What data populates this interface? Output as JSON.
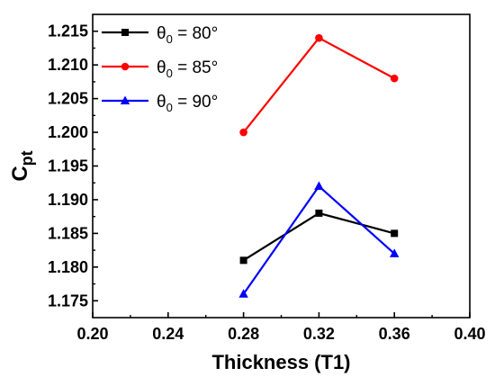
{
  "chart_data": {
    "type": "line",
    "xlabel": "Thickness (T1)",
    "ylabel": {
      "main": "C",
      "sub": "pt"
    },
    "xlim": [
      0.2,
      0.4
    ],
    "ylim": [
      1.1725,
      1.2175
    ],
    "x_ticks": [
      "0.20",
      "0.24",
      "0.28",
      "0.32",
      "0.36",
      "0.40"
    ],
    "y_ticks": [
      "1.175",
      "1.180",
      "1.185",
      "1.190",
      "1.195",
      "1.200",
      "1.205",
      "1.210",
      "1.215"
    ],
    "x": [
      0.28,
      0.32,
      0.36
    ],
    "series": [
      {
        "name": "θ0 = 80°",
        "label_sym": "θ",
        "label_sub": "0",
        "label_rest": " = 80°",
        "color": "#000000",
        "marker": "square",
        "values": [
          1.181,
          1.188,
          1.185
        ]
      },
      {
        "name": "θ0 = 85°",
        "label_sym": "θ",
        "label_sub": "0",
        "label_rest": " = 85°",
        "color": "#ff0000",
        "marker": "circle",
        "values": [
          1.2,
          1.214,
          1.208
        ]
      },
      {
        "name": "θ0 = 90°",
        "label_sym": "θ",
        "label_sub": "0",
        "label_rest": " = 90°",
        "color": "#0000ff",
        "marker": "triangle",
        "values": [
          1.176,
          1.192,
          1.182
        ]
      }
    ],
    "legend_position": "top-left",
    "grid": false
  }
}
